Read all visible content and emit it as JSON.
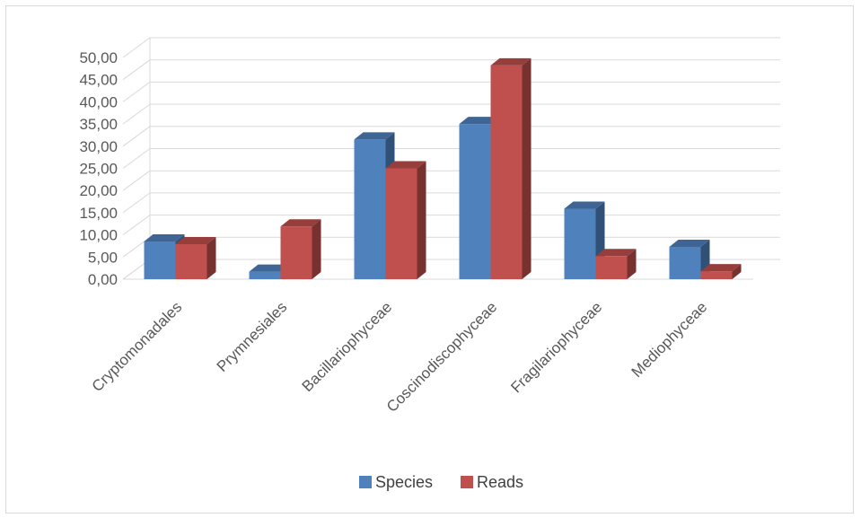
{
  "chart_data": {
    "type": "bar",
    "style": "3d-clustered-column",
    "categories": [
      "Cryptomonadales",
      "Prymnesiales",
      "Bacillariophyceae",
      "Coscinodiscophyceae",
      "Fragilariophyceae",
      "Mediophyceae"
    ],
    "series": [
      {
        "name": "Species",
        "values": [
          8.5,
          1.7,
          31.5,
          35.0,
          15.9,
          7.3
        ],
        "color": "#4f81bd"
      },
      {
        "name": "Reads",
        "values": [
          7.9,
          11.9,
          25.0,
          48.2,
          5.2,
          1.8
        ],
        "color": "#c0504d"
      }
    ],
    "yticks": [
      "0,00",
      "5,00",
      "10,00",
      "15,00",
      "20,00",
      "25,00",
      "30,00",
      "35,00",
      "40,00",
      "45,00",
      "50,00"
    ],
    "ylim": [
      0,
      50
    ],
    "grid": true,
    "legend_position": "bottom"
  }
}
